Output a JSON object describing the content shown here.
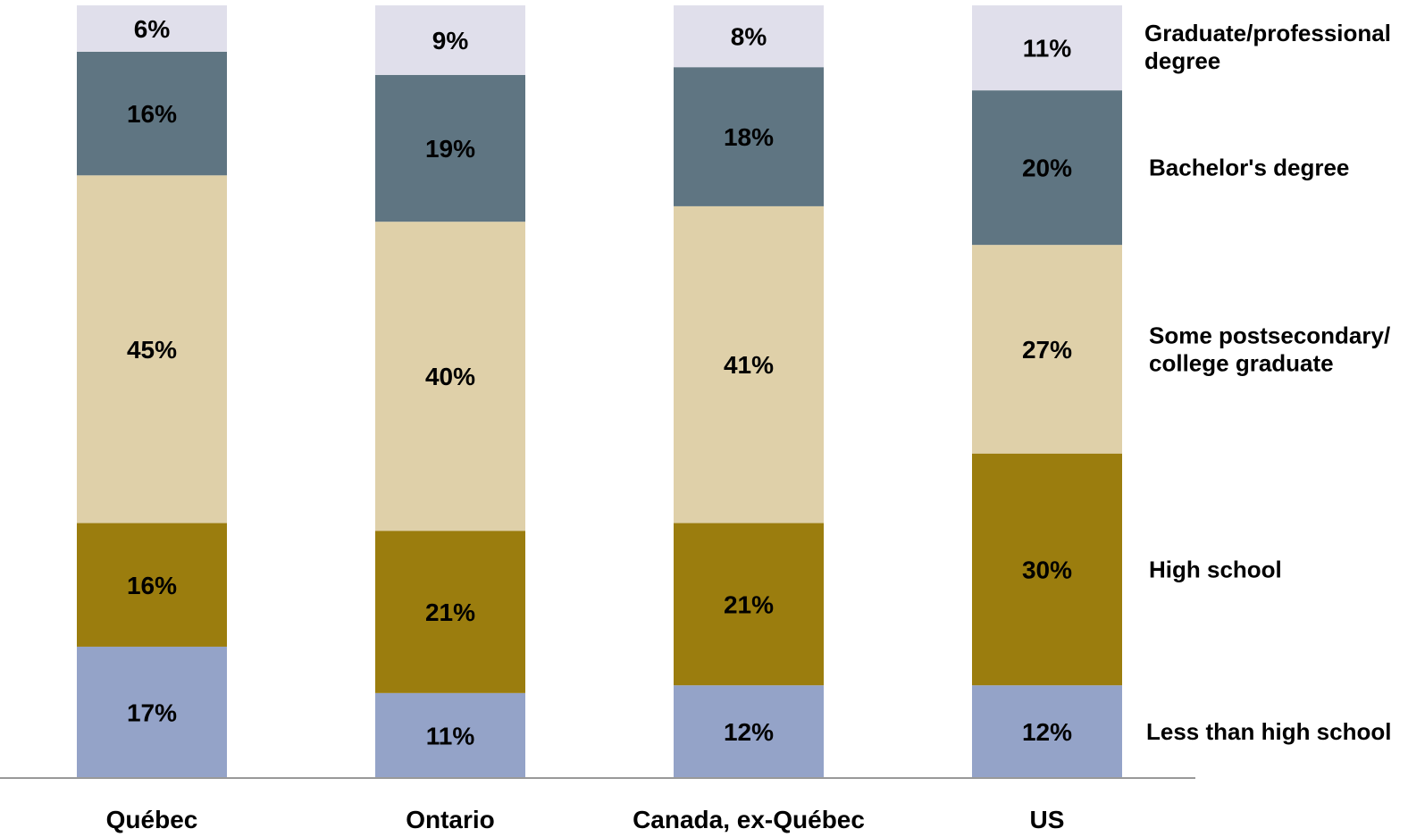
{
  "chart_data": {
    "type": "bar",
    "stacked": true,
    "orientation": "vertical",
    "categories": [
      "Québec",
      "Ontario",
      "Canada, ex-Québec",
      "US"
    ],
    "series": [
      {
        "name": "Less than high school",
        "color": "#94a3c8",
        "values": [
          17,
          11,
          12,
          12
        ],
        "labels": [
          "17%",
          "11%",
          "12%",
          "12%"
        ]
      },
      {
        "name": "High school",
        "color": "#9b7d0e",
        "values": [
          16,
          21,
          21,
          30
        ],
        "labels": [
          "16%",
          "21%",
          "21%",
          "30%"
        ]
      },
      {
        "name": "Some postsecondary/ college graduate",
        "color": "#dfd0a9",
        "values": [
          45,
          40,
          41,
          27
        ],
        "labels": [
          "45%",
          "40%",
          "41%",
          "27%"
        ]
      },
      {
        "name": "Bachelor's degree",
        "color": "#5f7582",
        "values": [
          16,
          19,
          18,
          20
        ],
        "labels": [
          "16%",
          "19%",
          "18%",
          "20%"
        ]
      },
      {
        "name": "Graduate/professional degree",
        "color": "#e0dfeb",
        "values": [
          6,
          9,
          8,
          11
        ],
        "labels": [
          "6%",
          "9%",
          "8%",
          "11%"
        ]
      }
    ],
    "legend": {
      "position": "right",
      "entries": [
        {
          "series": 4,
          "lines": [
            "Graduate/professional",
            "degree"
          ]
        },
        {
          "series": 3,
          "lines": [
            "Bachelor's degree"
          ]
        },
        {
          "series": 2,
          "lines": [
            "Some postsecondary/",
            "college graduate"
          ]
        },
        {
          "series": 1,
          "lines": [
            "High school"
          ]
        },
        {
          "series": 0,
          "lines": [
            "Less than high school"
          ]
        }
      ]
    },
    "axis_color": "#999999",
    "grid": false
  }
}
